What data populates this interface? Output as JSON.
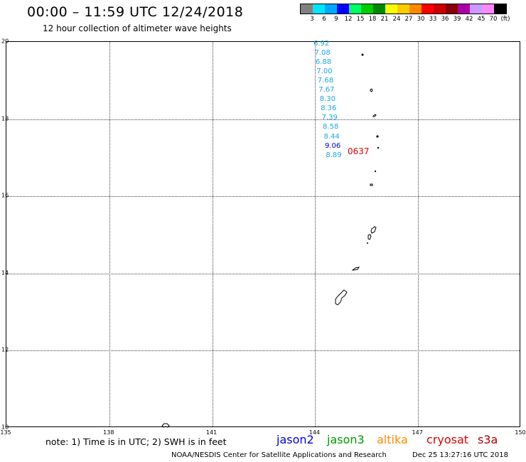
{
  "header": {
    "title": "00:00 – 11:59 UTC 12/24/2018",
    "subtitle": "12 hour collection of altimeter wave heights"
  },
  "color_scale": {
    "colors": [
      "#808080",
      "#00e5ff",
      "#00a8ff",
      "#0000ff",
      "#00ff66",
      "#00cc00",
      "#008800",
      "#ffff00",
      "#ffcc00",
      "#ff8800",
      "#ff0000",
      "#cc0000",
      "#880000",
      "#aa00aa",
      "#cc99ff",
      "#ff88ff",
      "#000000"
    ],
    "labels": [
      "3",
      "6",
      "9",
      "12",
      "15",
      "18",
      "21",
      "24",
      "27",
      "30",
      "33",
      "36",
      "39",
      "42",
      "45",
      "70",
      "(ft)"
    ]
  },
  "map": {
    "y_ticks": [
      "20",
      "18",
      "16",
      "14",
      "12",
      "10"
    ],
    "x_ticks": [
      "135",
      "138",
      "141",
      "144",
      "147",
      "150"
    ],
    "lat_range": [
      10,
      20
    ],
    "lon_range": [
      135,
      150
    ]
  },
  "wave_heights": [
    {
      "value": "6.92",
      "color": "#1ea7e0"
    },
    {
      "value": "7.08",
      "color": "#1ea7e0"
    },
    {
      "value": "6.88",
      "color": "#1ea7e0"
    },
    {
      "value": "7.00",
      "color": "#1ea7e0"
    },
    {
      "value": "7.68",
      "color": "#1ea7e0"
    },
    {
      "value": "7.67",
      "color": "#1ea7e0"
    },
    {
      "value": "8.30",
      "color": "#1ea7e0"
    },
    {
      "value": "8.36",
      "color": "#1ea7e0"
    },
    {
      "value": "7.39",
      "color": "#1ea7e0"
    },
    {
      "value": "8.58",
      "color": "#1ea7e0"
    },
    {
      "value": "8.44",
      "color": "#1ea7e0"
    },
    {
      "value": "9.06",
      "color": "#0000cc"
    },
    {
      "value": "8.89",
      "color": "#1ea7e0"
    }
  ],
  "track_id": "0637",
  "note": "note: 1) Time is in UTC; 2) SWH is in feet",
  "satellites": [
    {
      "name": "jason2",
      "color": "#0000dd"
    },
    {
      "name": "jason3",
      "color": "#009900"
    },
    {
      "name": "altika",
      "color": "#ff8800"
    },
    {
      "name": "cryosat",
      "color": "#dd0000"
    },
    {
      "name": "s3a",
      "color": "#aa0000"
    }
  ],
  "footer": {
    "credit": "NOAA/NESDIS Center for Satellite Applications and Research",
    "timestamp": "Dec 25 13:27:16 UTC 2018"
  }
}
